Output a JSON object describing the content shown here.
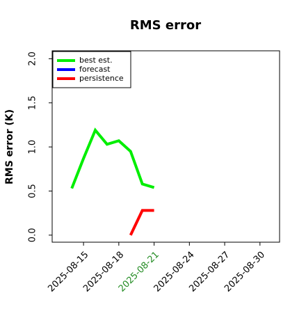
{
  "chart_data": {
    "type": "line",
    "title": "RMS error",
    "y_label": "RMS error (K)",
    "series": [
      {
        "name": "best est.",
        "color": "#00ee00",
        "x": [
          "2025-08-14",
          "2025-08-15",
          "2025-08-16",
          "2025-08-17",
          "2025-08-18",
          "2025-08-19",
          "2025-08-20",
          "2025-08-21"
        ],
        "values": [
          0.53,
          0.87,
          1.19,
          1.03,
          1.07,
          0.95,
          0.58,
          0.54
        ]
      },
      {
        "name": "forecast",
        "color": "#0000ff",
        "x": [],
        "values": []
      },
      {
        "name": "persistence",
        "color": "#ff0000",
        "x": [
          "2025-08-19",
          "2025-08-20",
          "2025-08-21"
        ],
        "values": [
          0.0,
          0.28,
          0.28
        ]
      }
    ],
    "xlim": [
      "2025-08-12T08:00",
      "2025-08-31T16:00"
    ],
    "xticks": [
      "2025-08-15",
      "2025-08-18",
      "2025-08-21",
      "2025-08-24",
      "2025-08-27",
      "2025-08-30"
    ],
    "highlight_tick": "2025-08-21",
    "highlight_color": "#228b22",
    "ylim": [
      -0.08,
      2.09
    ],
    "yticks": [
      0.0,
      0.5,
      1.0,
      1.5,
      2.0
    ],
    "legend": "upper left"
  }
}
